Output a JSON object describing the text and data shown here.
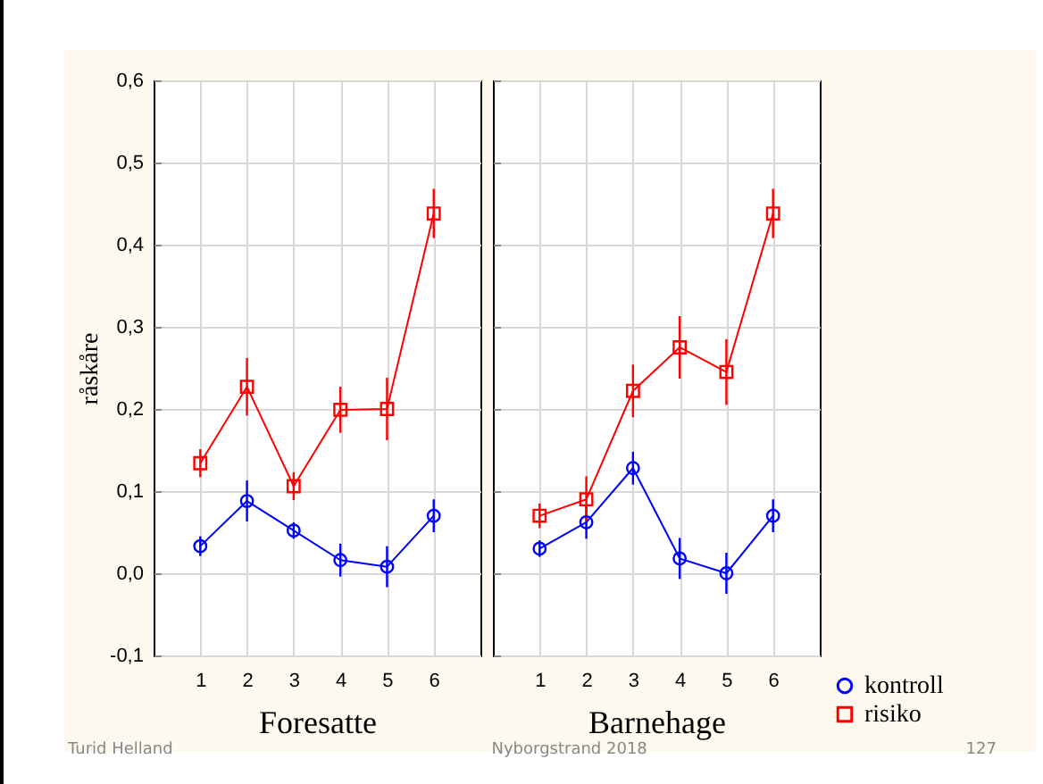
{
  "chart_data": [
    {
      "type": "line",
      "xlabel": "Foresatte",
      "ylabel": "råskåre",
      "x": [
        1,
        2,
        3,
        4,
        5,
        6
      ],
      "xlim": [
        0,
        7
      ],
      "xticks": [
        1,
        2,
        3,
        4,
        5,
        6
      ],
      "ylim": [
        -0.1,
        0.6
      ],
      "yticks": [
        {
          "value": -0.1,
          "label": "-0,1"
        },
        {
          "value": 0,
          "label": "0,0"
        },
        {
          "value": 0.1,
          "label": "0,1"
        },
        {
          "value": 0.2,
          "label": "0,2"
        },
        {
          "value": 0.3,
          "label": "0,3"
        },
        {
          "value": 0.4,
          "label": "0,4"
        },
        {
          "value": 0.5,
          "label": "0,5"
        },
        {
          "value": 0.6,
          "label": "0,6"
        }
      ],
      "grid": true,
      "series": [
        {
          "color": "#0000ff",
          "marker": "circle",
          "values": [
            0.033,
            0.088,
            0.052,
            0.016,
            0.008,
            0.07
          ],
          "errors": [
            0.012,
            0.025,
            0.01,
            0.02,
            0.025,
            0.02
          ]
        },
        {
          "color": "#ff0000",
          "marker": "square",
          "values": [
            0.134,
            0.227,
            0.106,
            0.199,
            0.2,
            0.438
          ],
          "errors": [
            0.017,
            0.035,
            0.017,
            0.028,
            0.038,
            0.03
          ]
        }
      ]
    },
    {
      "type": "line",
      "xlabel": "Barnehage",
      "x": [
        1,
        2,
        3,
        4,
        5,
        6
      ],
      "xlim": [
        0,
        7
      ],
      "xticks": [
        1,
        2,
        3,
        4,
        5,
        6
      ],
      "ylim": [
        -0.1,
        0.6
      ],
      "yticks": [
        -0.1,
        0,
        0.1,
        0.2,
        0.3,
        0.4,
        0.5,
        0.6
      ],
      "tick_labels": "x",
      "grid": true,
      "legend": "bottom right",
      "series": [
        {
          "name": "kontroll",
          "color": "#0000ff",
          "marker": "circle",
          "values": [
            0.03,
            0.062,
            0.128,
            0.018,
            0.0,
            0.07
          ],
          "errors": [
            0.01,
            0.02,
            0.02,
            0.025,
            0.025,
            0.02
          ]
        },
        {
          "name": "risiko",
          "color": "#ff0000",
          "marker": "square",
          "values": [
            0.07,
            0.09,
            0.222,
            0.275,
            0.245,
            0.438
          ],
          "errors": [
            0.015,
            0.028,
            0.032,
            0.038,
            0.04,
            0.03
          ]
        }
      ],
      "annotations": [
        "Turid Helland",
        "Nyborgstrand 2018",
        "127"
      ]
    }
  ]
}
